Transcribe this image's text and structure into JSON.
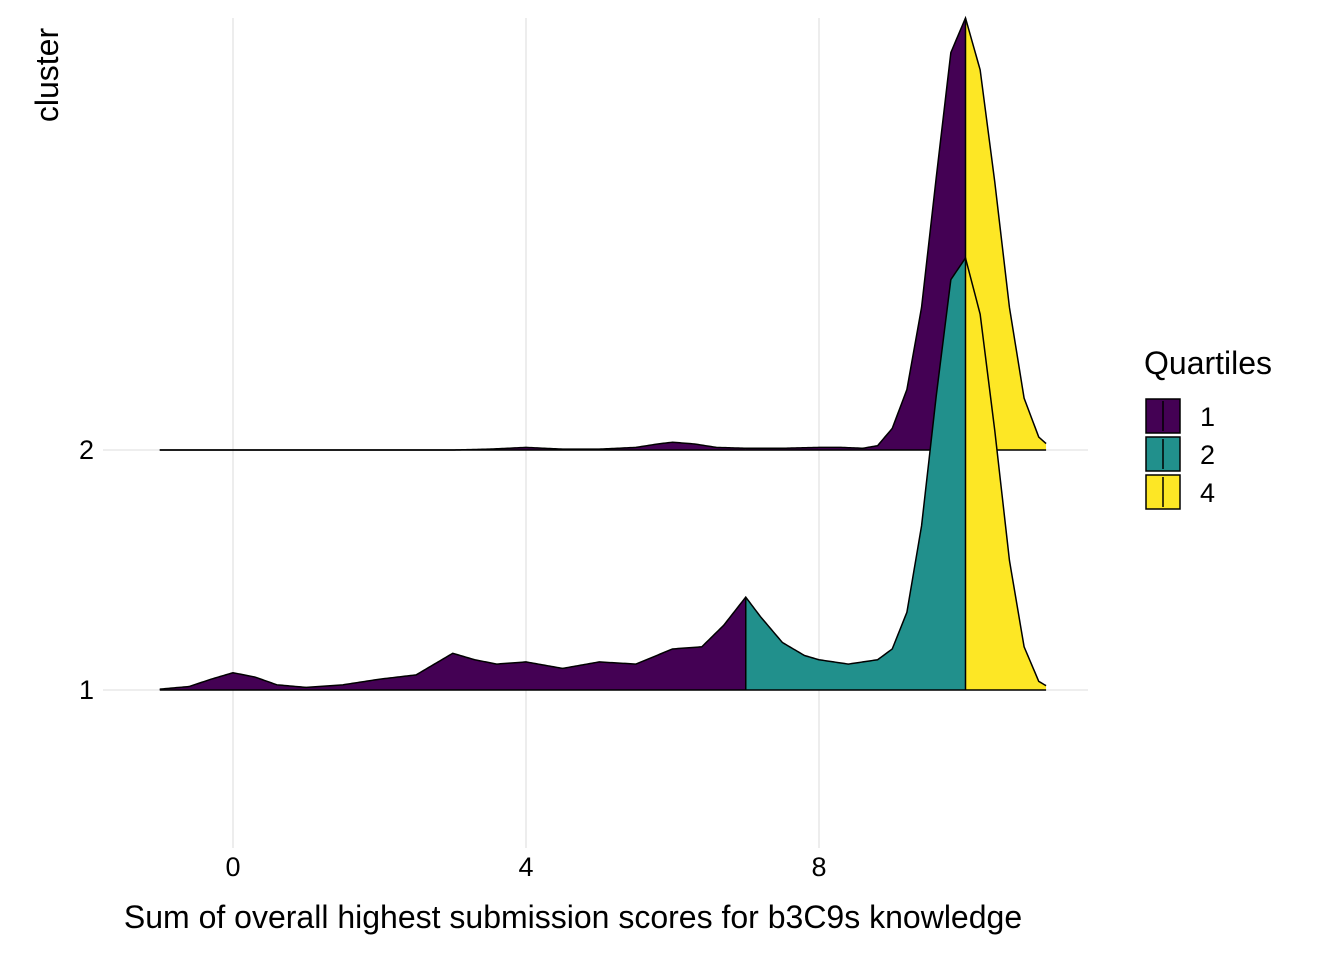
{
  "chart_data": {
    "type": "ridgeline-density",
    "title": "",
    "xlabel": "Sum of overall highest submission scores for b3C9s knowledge",
    "ylabel": "cluster",
    "xlim": [
      -2.1,
      11.6
    ],
    "x_ticks": [
      0,
      4,
      8
    ],
    "x_tick_labels": [
      "0",
      "4",
      "8"
    ],
    "grid": "vertical major lines",
    "quartile_boundaries": [
      7,
      10
    ],
    "legend": {
      "title": "Quartiles",
      "position": "right",
      "items": [
        {
          "label": "1",
          "color": "#440154"
        },
        {
          "label": "2",
          "color": "#21908C"
        },
        {
          "label": "4",
          "color": "#FDE725"
        }
      ]
    },
    "series": [
      {
        "cluster": "2",
        "x": [
          -1,
          0,
          1,
          2,
          3,
          3.5,
          4,
          4.5,
          5,
          5.5,
          5.8,
          6,
          6.3,
          6.6,
          7,
          7.5,
          8,
          8.3,
          8.6,
          8.8,
          9.0,
          9.2,
          9.4,
          9.6,
          9.8,
          10,
          10.2,
          10.4,
          10.6,
          10.8,
          11,
          11.1
        ],
        "density": [
          0,
          0,
          0,
          0,
          0,
          0.002,
          0.006,
          0.002,
          0.002,
          0.006,
          0.014,
          0.018,
          0.014,
          0.006,
          0.004,
          0.004,
          0.006,
          0.006,
          0.004,
          0.01,
          0.05,
          0.14,
          0.33,
          0.63,
          0.92,
          1.0,
          0.88,
          0.62,
          0.33,
          0.12,
          0.03,
          0.015
        ]
      },
      {
        "cluster": "1",
        "x": [
          -1,
          -0.6,
          -0.3,
          0,
          0.3,
          0.6,
          1,
          1.5,
          2,
          2.5,
          2.8,
          3,
          3.3,
          3.6,
          4,
          4.5,
          5,
          5.5,
          6,
          6.4,
          6.7,
          7,
          7.2,
          7.5,
          7.8,
          8,
          8.4,
          8.8,
          9.0,
          9.2,
          9.4,
          9.6,
          9.8,
          10,
          10.2,
          10.4,
          10.6,
          10.8,
          11,
          11.1
        ],
        "density": [
          0.002,
          0.008,
          0.025,
          0.04,
          0.03,
          0.012,
          0.006,
          0.012,
          0.025,
          0.035,
          0.065,
          0.085,
          0.07,
          0.06,
          0.065,
          0.05,
          0.065,
          0.06,
          0.095,
          0.1,
          0.15,
          0.215,
          0.17,
          0.11,
          0.08,
          0.07,
          0.06,
          0.07,
          0.095,
          0.18,
          0.38,
          0.68,
          0.95,
          1.0,
          0.87,
          0.6,
          0.3,
          0.1,
          0.02,
          0.01
        ]
      }
    ]
  }
}
